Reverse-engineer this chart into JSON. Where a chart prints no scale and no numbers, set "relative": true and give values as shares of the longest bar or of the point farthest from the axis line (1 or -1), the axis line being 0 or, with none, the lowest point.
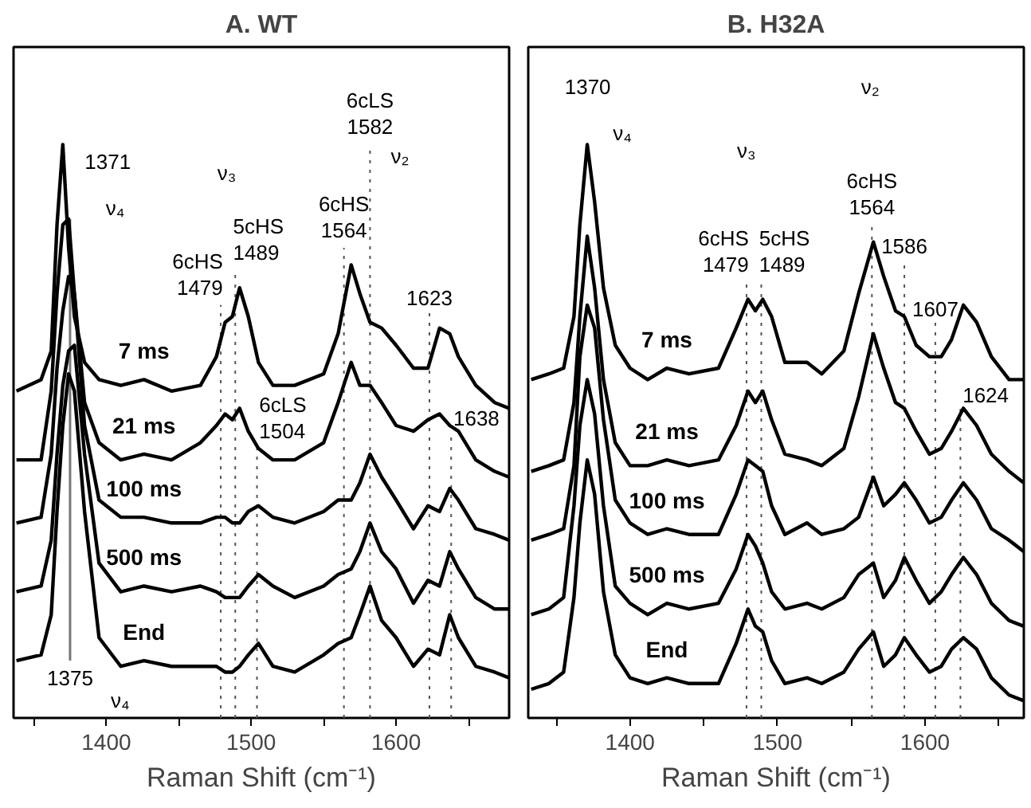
{
  "chart_data": [
    {
      "type": "line",
      "title": "A. WT",
      "xlabel": "Raman Shift (cm⁻¹)",
      "relative": true,
      "tick_labels": "x",
      "xlim": [
        1336,
        1678
      ],
      "xticks": [
        {
          "value": 1350,
          "label": null
        },
        1400,
        {
          "value": 1450,
          "label": null
        },
        1500,
        {
          "value": 1550,
          "label": null
        },
        1600,
        {
          "value": 1650,
          "label": null
        }
      ],
      "x": [
        1338,
        1355,
        1362,
        1366,
        1370,
        1374,
        1378,
        1385,
        1395,
        1410,
        1426,
        1445,
        1465,
        1476,
        1482,
        1487,
        1492,
        1498,
        1505,
        1515,
        1530,
        1550,
        1560,
        1569,
        1575,
        1582,
        1590,
        1600,
        1612,
        1622,
        1630,
        1637,
        1643,
        1655,
        1668,
        1678
      ],
      "series": [
        {
          "name": "7 ms",
          "color": "#000000",
          "values": [
            0.57,
            0.59,
            0.64,
            0.86,
            1.0,
            0.82,
            0.7,
            0.62,
            0.59,
            0.58,
            0.59,
            0.57,
            0.58,
            0.63,
            0.69,
            0.7,
            0.75,
            0.7,
            0.62,
            0.58,
            0.58,
            0.6,
            0.67,
            0.79,
            0.74,
            0.69,
            0.68,
            0.65,
            0.61,
            0.61,
            0.68,
            0.67,
            0.63,
            0.58,
            0.55,
            0.54
          ]
        },
        {
          "name": "21 ms",
          "color": "#000000",
          "values": [
            0.45,
            0.45,
            0.57,
            0.74,
            0.86,
            0.87,
            0.74,
            0.55,
            0.48,
            0.45,
            0.46,
            0.45,
            0.48,
            0.51,
            0.53,
            0.52,
            0.54,
            0.5,
            0.47,
            0.45,
            0.45,
            0.48,
            0.55,
            0.62,
            0.58,
            0.58,
            0.55,
            0.51,
            0.5,
            0.52,
            0.53,
            0.51,
            0.5,
            0.45,
            0.43,
            0.42
          ]
        },
        {
          "name": "100 ms",
          "color": "#000000",
          "values": [
            0.34,
            0.35,
            0.46,
            0.61,
            0.71,
            0.77,
            0.74,
            0.51,
            0.38,
            0.35,
            0.35,
            0.34,
            0.34,
            0.35,
            0.35,
            0.34,
            0.34,
            0.36,
            0.37,
            0.35,
            0.34,
            0.36,
            0.38,
            0.38,
            0.41,
            0.46,
            0.42,
            0.38,
            0.33,
            0.37,
            0.36,
            0.4,
            0.38,
            0.33,
            0.32,
            0.31
          ]
        },
        {
          "name": "500 ms",
          "color": "#000000",
          "values": [
            0.22,
            0.23,
            0.31,
            0.46,
            0.58,
            0.64,
            0.65,
            0.46,
            0.27,
            0.22,
            0.23,
            0.22,
            0.23,
            0.22,
            0.21,
            0.21,
            0.21,
            0.23,
            0.25,
            0.23,
            0.21,
            0.23,
            0.25,
            0.26,
            0.29,
            0.34,
            0.29,
            0.26,
            0.2,
            0.24,
            0.23,
            0.29,
            0.26,
            0.21,
            0.19,
            0.19
          ]
        },
        {
          "name": "End",
          "color": "#000000",
          "values": [
            0.1,
            0.11,
            0.18,
            0.36,
            0.51,
            0.6,
            0.57,
            0.36,
            0.14,
            0.09,
            0.1,
            0.09,
            0.09,
            0.09,
            0.08,
            0.08,
            0.09,
            0.11,
            0.13,
            0.09,
            0.08,
            0.11,
            0.13,
            0.14,
            0.18,
            0.23,
            0.17,
            0.14,
            0.09,
            0.12,
            0.11,
            0.18,
            0.14,
            0.09,
            0.08,
            0.07
          ]
        }
      ],
      "annotations": [
        "1371",
        "ν₄",
        "ν₃",
        "ν₂",
        "ν₄"
      ],
      "ref_lines": [
        {
          "axis": "x",
          "value": 1375,
          "label": "1375",
          "color": "#777777",
          "line_style": "solid"
        },
        {
          "axis": "x",
          "value": 1479,
          "label": "6cHS\n1479",
          "color": "#555555",
          "line_style": "dotted"
        },
        {
          "axis": "x",
          "value": 1489,
          "label": "5cHS\n1489",
          "color": "#555555",
          "line_style": "dotted"
        },
        {
          "axis": "x",
          "value": 1504,
          "label": "6cLS\n1504",
          "color": "#555555",
          "line_style": "dotted"
        },
        {
          "axis": "x",
          "value": 1564,
          "label": "6cHS\n1564",
          "color": "#555555",
          "line_style": "dotted"
        },
        {
          "axis": "x",
          "value": 1582,
          "label": "6cLS\n1582",
          "color": "#555555",
          "line_style": "dotted"
        },
        {
          "axis": "x",
          "value": 1623,
          "label": "1623",
          "color": "#555555",
          "line_style": "dotted"
        },
        {
          "axis": "x",
          "value": 1638,
          "label": "1638",
          "color": "#555555",
          "line_style": "dotted"
        }
      ]
    },
    {
      "type": "line",
      "title": "B. H32A",
      "xlabel": "Raman Shift (cm⁻¹)",
      "relative": true,
      "tick_labels": "x",
      "xlim": [
        1331,
        1667
      ],
      "xticks": [
        {
          "value": 1350,
          "label": null
        },
        1400,
        {
          "value": 1450,
          "label": null
        },
        1500,
        {
          "value": 1550,
          "label": null
        },
        1600,
        {
          "value": 1650,
          "label": null
        }
      ],
      "x": [
        1333,
        1345,
        1355,
        1362,
        1366,
        1371,
        1376,
        1382,
        1390,
        1400,
        1412,
        1425,
        1440,
        1460,
        1472,
        1480,
        1485,
        1490,
        1496,
        1505,
        1520,
        1530,
        1545,
        1555,
        1565,
        1572,
        1580,
        1586,
        1594,
        1603,
        1611,
        1618,
        1626,
        1635,
        1645,
        1657,
        1667
      ],
      "series": [
        {
          "name": "7 ms",
          "color": "#000000",
          "values": [
            0.59,
            0.6,
            0.61,
            0.7,
            0.86,
            1.0,
            0.9,
            0.75,
            0.65,
            0.61,
            0.59,
            0.61,
            0.6,
            0.61,
            0.68,
            0.73,
            0.71,
            0.73,
            0.7,
            0.62,
            0.62,
            0.6,
            0.64,
            0.74,
            0.83,
            0.77,
            0.71,
            0.7,
            0.65,
            0.63,
            0.63,
            0.66,
            0.72,
            0.69,
            0.63,
            0.59,
            0.59
          ]
        },
        {
          "name": "21 ms",
          "color": "#000000",
          "values": [
            0.43,
            0.44,
            0.45,
            0.55,
            0.7,
            0.84,
            0.75,
            0.59,
            0.48,
            0.44,
            0.44,
            0.45,
            0.44,
            0.45,
            0.51,
            0.57,
            0.55,
            0.57,
            0.52,
            0.46,
            0.45,
            0.44,
            0.47,
            0.56,
            0.67,
            0.61,
            0.55,
            0.54,
            0.5,
            0.46,
            0.47,
            0.5,
            0.54,
            0.51,
            0.46,
            0.43,
            0.41
          ]
        },
        {
          "name": "100 ms",
          "color": "#000000",
          "values": [
            0.31,
            0.32,
            0.33,
            0.44,
            0.63,
            0.72,
            0.68,
            0.52,
            0.38,
            0.34,
            0.32,
            0.33,
            0.32,
            0.32,
            0.39,
            0.45,
            0.44,
            0.43,
            0.37,
            0.32,
            0.34,
            0.32,
            0.33,
            0.35,
            0.42,
            0.37,
            0.39,
            0.41,
            0.38,
            0.34,
            0.35,
            0.38,
            0.41,
            0.38,
            0.33,
            0.31,
            0.29
          ]
        },
        {
          "name": "500 ms",
          "color": "#000000",
          "values": [
            0.18,
            0.19,
            0.21,
            0.37,
            0.51,
            0.59,
            0.53,
            0.37,
            0.23,
            0.2,
            0.18,
            0.2,
            0.19,
            0.2,
            0.26,
            0.32,
            0.3,
            0.27,
            0.22,
            0.19,
            0.2,
            0.19,
            0.21,
            0.25,
            0.27,
            0.21,
            0.24,
            0.28,
            0.24,
            0.2,
            0.22,
            0.25,
            0.28,
            0.25,
            0.2,
            0.17,
            0.16
          ]
        },
        {
          "name": "End",
          "color": "#000000",
          "values": [
            0.05,
            0.06,
            0.08,
            0.21,
            0.34,
            0.45,
            0.39,
            0.22,
            0.11,
            0.07,
            0.06,
            0.07,
            0.06,
            0.06,
            0.13,
            0.19,
            0.16,
            0.15,
            0.1,
            0.06,
            0.07,
            0.06,
            0.08,
            0.12,
            0.15,
            0.09,
            0.11,
            0.14,
            0.11,
            0.08,
            0.09,
            0.12,
            0.14,
            0.12,
            0.07,
            0.04,
            0.03
          ]
        }
      ],
      "annotations": [
        "1370",
        "ν₄",
        "ν₂",
        "ν₃"
      ],
      "ref_lines": [
        {
          "axis": "x",
          "value": 1479,
          "label": "6cHS\n1479",
          "color": "#555555",
          "line_style": "dotted"
        },
        {
          "axis": "x",
          "value": 1489,
          "label": "5cHS\n1489",
          "color": "#555555",
          "line_style": "dotted"
        },
        {
          "axis": "x",
          "value": 1564,
          "label": "6cHS\n1564",
          "color": "#555555",
          "line_style": "dotted"
        },
        {
          "axis": "x",
          "value": 1586,
          "label": "1586",
          "color": "#555555",
          "line_style": "dotted"
        },
        {
          "axis": "x",
          "value": 1607,
          "label": "1607",
          "color": "#555555",
          "line_style": "dotted"
        },
        {
          "axis": "x",
          "value": 1624,
          "label": "1624",
          "color": "#555555",
          "line_style": "dotted"
        }
      ]
    }
  ]
}
